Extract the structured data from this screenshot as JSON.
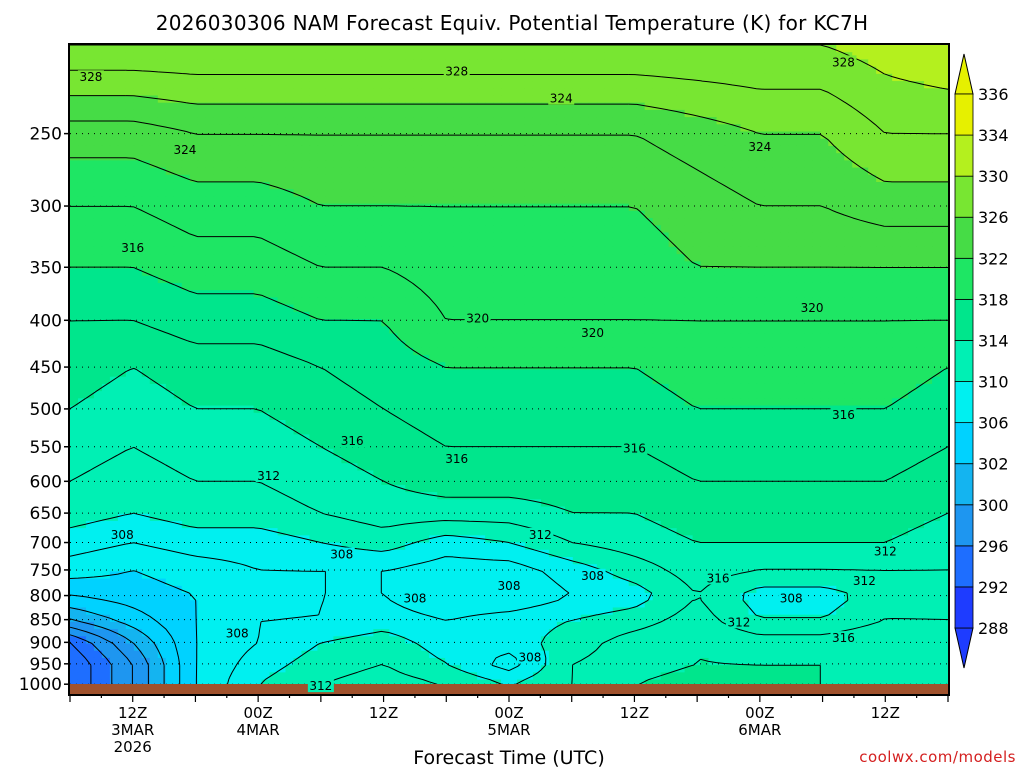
{
  "chart_data": {
    "type": "heatmap",
    "title": "2026030306 NAM Forecast Equiv. Potential Temperature (K) for KC7H",
    "xlabel": "Forecast Time (UTC)",
    "ylabel": "",
    "y_scale": "log",
    "y_inverted": true,
    "ylim": [
      1025,
      200
    ],
    "y_ticks": [
      250,
      300,
      350,
      400,
      450,
      500,
      550,
      600,
      650,
      700,
      750,
      800,
      850,
      900,
      950,
      1000
    ],
    "x_ticks": [
      {
        "t": 6,
        "line1": "12Z",
        "line2": "3MAR",
        "line3": "2026"
      },
      {
        "t": 18,
        "line1": "00Z",
        "line2": "4MAR",
        "line3": ""
      },
      {
        "t": 30,
        "line1": "12Z",
        "line2": "",
        "line3": ""
      },
      {
        "t": 42,
        "line1": "00Z",
        "line2": "5MAR",
        "line3": ""
      },
      {
        "t": 54,
        "line1": "12Z",
        "line2": "",
        "line3": ""
      },
      {
        "t": 66,
        "line1": "00Z",
        "line2": "6MAR",
        "line3": ""
      },
      {
        "t": 78,
        "line1": "12Z",
        "line2": "",
        "line3": ""
      }
    ],
    "xlim": [
      0,
      84
    ],
    "colorbar": {
      "levels": [
        288,
        292,
        296,
        300,
        302,
        306,
        310,
        314,
        318,
        322,
        326,
        330,
        334,
        336
      ],
      "colors": [
        "#1e3cff",
        "#1e6eff",
        "#1e96f0",
        "#14b4f0",
        "#00d2ff",
        "#00f0f0",
        "#00f0b4",
        "#00e68c",
        "#1ee664",
        "#46dc46",
        "#78e632",
        "#b4f01e",
        "#e6f000"
      ],
      "tick_labels": [
        "336",
        "334",
        "330",
        "326",
        "322",
        "318",
        "314",
        "310",
        "306",
        "302",
        "300",
        "296",
        "292",
        "288"
      ]
    },
    "contour_labels": [
      {
        "text": "328",
        "t": 2,
        "p": 218
      },
      {
        "text": "328",
        "t": 37,
        "p": 215
      },
      {
        "text": "328",
        "t": 74,
        "p": 210
      },
      {
        "text": "324",
        "t": 47,
        "p": 230
      },
      {
        "text": "324",
        "t": 11,
        "p": 262
      },
      {
        "text": "324",
        "t": 66,
        "p": 260
      },
      {
        "text": "316",
        "t": 6,
        "p": 335
      },
      {
        "text": "320",
        "t": 39,
        "p": 400
      },
      {
        "text": "320",
        "t": 50,
        "p": 415
      },
      {
        "text": "320",
        "t": 71,
        "p": 390
      },
      {
        "text": "316",
        "t": 74,
        "p": 510
      },
      {
        "text": "316",
        "t": 27,
        "p": 545
      },
      {
        "text": "316",
        "t": 37,
        "p": 570
      },
      {
        "text": "316",
        "t": 54,
        "p": 555
      },
      {
        "text": "312",
        "t": 19,
        "p": 595
      },
      {
        "text": "308",
        "t": 5,
        "p": 690
      },
      {
        "text": "312",
        "t": 45,
        "p": 690
      },
      {
        "text": "312",
        "t": 78,
        "p": 720
      },
      {
        "text": "308",
        "t": 26,
        "p": 725
      },
      {
        "text": "308",
        "t": 42,
        "p": 785
      },
      {
        "text": "308",
        "t": 33,
        "p": 810
      },
      {
        "text": "308",
        "t": 50,
        "p": 765
      },
      {
        "text": "316",
        "t": 62,
        "p": 770
      },
      {
        "text": "312",
        "t": 76,
        "p": 775
      },
      {
        "text": "308",
        "t": 69,
        "p": 810
      },
      {
        "text": "312",
        "t": 64,
        "p": 860
      },
      {
        "text": "316",
        "t": 74,
        "p": 895
      },
      {
        "text": "308",
        "t": 16,
        "p": 885
      },
      {
        "text": "308",
        "t": 44,
        "p": 940
      },
      {
        "text": "312",
        "t": 24,
        "p": 1010
      }
    ],
    "profiles": [
      {
        "t": 0,
        "p": [
          1000,
          950,
          900,
          850,
          800,
          750,
          700,
          650,
          600,
          550,
          500,
          450,
          400,
          350,
          300,
          250,
          200
        ],
        "theta": [
          292,
          292,
          294,
          300,
          304,
          307,
          309,
          311,
          312,
          313,
          314,
          315,
          316,
          318,
          320,
          323,
          330
        ]
      },
      {
        "t": 6,
        "p": [
          1000,
          950,
          900,
          850,
          800,
          750,
          700,
          650,
          600,
          550,
          500,
          450,
          400,
          350,
          300,
          250,
          200
        ],
        "theta": [
          298,
          298,
          300,
          303,
          305,
          306,
          308,
          310,
          311,
          312,
          313,
          314,
          316,
          318,
          320,
          323,
          330
        ]
      },
      {
        "t": 12,
        "p": [
          1000,
          950,
          900,
          850,
          800,
          750,
          700,
          650,
          600,
          550,
          500,
          450,
          400,
          350,
          300,
          250,
          200
        ],
        "theta": [
          306,
          306,
          306,
          306,
          306,
          307,
          309,
          311,
          312,
          313,
          314,
          315,
          317,
          319,
          321,
          324,
          330
        ]
      },
      {
        "t": 18,
        "p": [
          1000,
          950,
          900,
          850,
          800,
          750,
          700,
          650,
          600,
          550,
          500,
          450,
          400,
          350,
          300,
          250,
          200
        ],
        "theta": [
          310,
          309,
          308,
          308,
          307,
          308,
          309,
          311,
          312,
          313,
          314,
          315,
          317,
          319,
          321,
          324,
          330
        ]
      },
      {
        "t": 24,
        "p": [
          1000,
          950,
          900,
          850,
          800,
          750,
          700,
          650,
          600,
          550,
          500,
          450,
          400,
          350,
          300,
          250,
          200
        ],
        "theta": [
          312,
          311,
          310,
          308,
          308,
          308,
          310,
          312,
          313,
          314,
          315,
          316,
          318,
          320,
          322,
          324,
          330
        ]
      },
      {
        "t": 30,
        "p": [
          1000,
          950,
          900,
          850,
          800,
          750,
          700,
          650,
          600,
          550,
          500,
          450,
          400,
          350,
          300,
          250,
          200
        ],
        "theta": [
          313,
          312,
          311,
          309,
          308,
          308,
          311,
          313,
          314,
          315,
          316,
          317,
          318,
          320,
          322,
          324,
          330
        ]
      },
      {
        "t": 36,
        "p": [
          1000,
          950,
          900,
          850,
          800,
          750,
          700,
          650,
          600,
          550,
          500,
          450,
          400,
          350,
          300,
          250,
          200
        ],
        "theta": [
          312,
          310,
          309,
          308,
          306,
          307,
          309,
          313,
          315,
          316,
          317,
          318,
          320,
          321,
          322,
          324,
          330
        ]
      },
      {
        "t": 42,
        "p": [
          1000,
          950,
          900,
          850,
          800,
          750,
          700,
          650,
          600,
          550,
          500,
          450,
          400,
          350,
          300,
          250,
          200
        ],
        "theta": [
          310,
          307,
          309,
          309,
          306,
          307,
          310,
          313,
          315,
          316,
          317,
          318,
          320,
          321,
          322,
          324,
          330
        ]
      },
      {
        "t": 48,
        "p": [
          1000,
          950,
          900,
          850,
          800,
          750,
          700,
          650,
          600,
          550,
          500,
          450,
          400,
          350,
          300,
          250,
          200
        ],
        "theta": [
          312,
          312,
          311,
          310,
          308,
          309,
          312,
          314,
          315,
          316,
          317,
          318,
          320,
          321,
          322,
          324,
          330
        ]
      },
      {
        "t": 54,
        "p": [
          1000,
          950,
          900,
          850,
          800,
          750,
          700,
          650,
          600,
          550,
          500,
          450,
          400,
          350,
          300,
          250,
          200
        ],
        "theta": [
          314,
          313,
          313,
          311,
          309,
          311,
          313,
          314,
          315,
          316,
          317,
          318,
          320,
          321,
          322,
          324,
          330
        ]
      },
      {
        "t": 60,
        "p": [
          1000,
          950,
          900,
          850,
          800,
          750,
          700,
          650,
          600,
          550,
          500,
          450,
          400,
          350,
          300,
          250,
          200
        ],
        "theta": [
          315,
          314,
          314,
          313,
          312,
          313,
          314,
          315,
          316,
          317,
          318,
          319,
          320,
          322,
          323,
          325,
          330
        ]
      },
      {
        "t": 66,
        "p": [
          1000,
          950,
          900,
          850,
          800,
          750,
          700,
          650,
          600,
          550,
          500,
          450,
          400,
          350,
          300,
          250,
          200
        ],
        "theta": [
          314,
          314,
          313,
          310,
          309,
          312,
          314,
          315,
          316,
          317,
          318,
          319,
          320,
          322,
          324,
          326,
          330
        ]
      },
      {
        "t": 72,
        "p": [
          1000,
          950,
          900,
          850,
          800,
          750,
          700,
          650,
          600,
          550,
          500,
          450,
          400,
          350,
          300,
          250,
          200
        ],
        "theta": [
          314,
          314,
          313,
          310,
          309,
          312,
          314,
          315,
          316,
          317,
          318,
          319,
          320,
          322,
          324,
          326,
          330
        ]
      },
      {
        "t": 78,
        "p": [
          1000,
          950,
          900,
          850,
          800,
          750,
          700,
          650,
          600,
          550,
          500,
          450,
          400,
          350,
          300,
          250,
          200
        ],
        "theta": [
          313,
          314,
          314,
          312,
          311,
          312,
          314,
          315,
          316,
          317,
          318,
          319,
          320,
          322,
          325,
          328,
          331
        ]
      },
      {
        "t": 84,
        "p": [
          1000,
          950,
          900,
          850,
          800,
          750,
          700,
          650,
          600,
          550,
          500,
          450,
          400,
          350,
          300,
          250,
          200
        ],
        "theta": [
          312,
          313,
          313,
          312,
          311,
          312,
          313,
          314,
          315,
          316,
          317,
          318,
          320,
          322,
          325,
          328,
          332
        ]
      }
    ]
  },
  "credit": "coolwx.com/models"
}
